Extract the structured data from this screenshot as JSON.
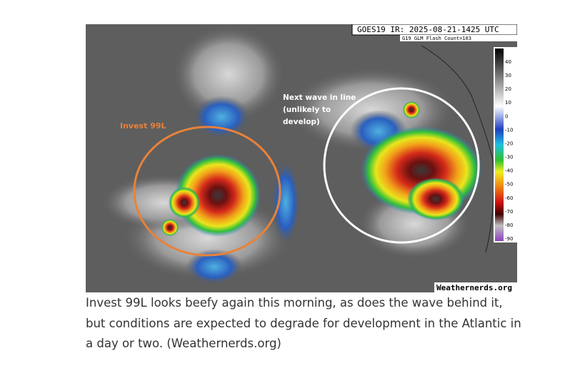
{
  "header": {
    "title": "GOES19 IR: 2025-08-21-1425 UTC",
    "flash_count": "G19 GLM Flash Count=103"
  },
  "colorbar": {
    "labels": [
      40,
      30,
      20,
      10,
      0,
      -10,
      -20,
      -30,
      -40,
      -50,
      -60,
      -70,
      -80,
      -90
    ]
  },
  "annotations": {
    "invest": "Invest 99L",
    "next_wave": [
      "Next wave in line",
      "(unlikely to",
      "develop)"
    ]
  },
  "watermark": "Weathernerds.org",
  "caption": "Invest 99L looks beefy again this morning, as does the wave behind it, but conditions are expected to degrade for development in the Atlantic in a day or two. (Weathernerds.org)"
}
